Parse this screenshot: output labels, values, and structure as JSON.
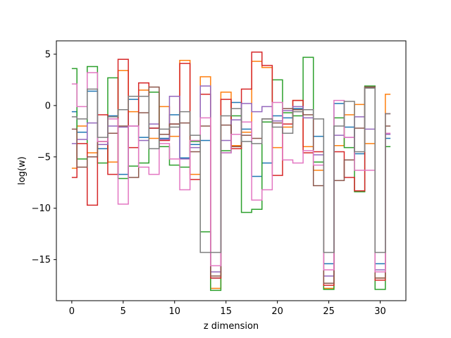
{
  "chart_data": {
    "type": "line",
    "drawstyle": "steps-mid",
    "title": "",
    "xlabel": "z dimension",
    "ylabel": "log(w)",
    "xlim": [
      -1.5,
      32.5
    ],
    "ylim": [
      -19.0,
      6.3
    ],
    "xticks": [
      0,
      5,
      10,
      15,
      20,
      25,
      30
    ],
    "yticks": [
      5,
      0,
      -5,
      -10,
      -15
    ],
    "ytick_labels": [
      "5",
      "0",
      "−5",
      "−10",
      "−15"
    ],
    "grid": false,
    "legend": "none",
    "x": [
      0,
      1,
      2,
      3,
      4,
      5,
      6,
      7,
      8,
      9,
      10,
      11,
      12,
      13,
      14,
      15,
      16,
      17,
      18,
      19,
      20,
      21,
      22,
      23,
      24,
      25,
      26,
      27,
      28,
      29,
      30,
      31
    ],
    "series": [
      {
        "color": "#1f77b4",
        "values": [
          -0.6,
          -2.6,
          1.4,
          -4.2,
          -1.0,
          -6.7,
          0.6,
          -3.1,
          -2.2,
          -3.2,
          -0.9,
          -5.1,
          -3.8,
          -3.4,
          -16.8,
          -4.6,
          0.3,
          -2.3,
          -6.9,
          -5.6,
          -1.0,
          -1.2,
          -0.3,
          -0.4,
          -3.0,
          -15.4,
          0.2,
          -2.1,
          -4.7,
          1.8,
          -15.4,
          -3.2
        ]
      },
      {
        "color": "#ff7f0e",
        "values": [
          -6.1,
          -2.0,
          -4.6,
          -3.5,
          -5.5,
          3.4,
          -0.6,
          1.5,
          -3.2,
          -0.1,
          -3.0,
          4.4,
          -6.7,
          2.8,
          -17.8,
          1.3,
          -3.9,
          -2.6,
          4.3,
          3.7,
          -4.1,
          -2.1,
          0.5,
          -4.0,
          -6.3,
          -17.8,
          -3.9,
          -0.9,
          0.1,
          -3.7,
          -16.8,
          1.1
        ]
      },
      {
        "color": "#2ca02c",
        "values": [
          3.6,
          -5.2,
          3.8,
          -5.6,
          2.7,
          -7.1,
          -5.9,
          -5.6,
          1.3,
          -4.0,
          -5.8,
          -6.0,
          -3.5,
          -12.3,
          -18.0,
          -4.4,
          -1.0,
          -10.4,
          -10.1,
          -1.6,
          2.5,
          -0.7,
          -1.0,
          4.7,
          -5.5,
          -17.9,
          -1.2,
          -4.1,
          -8.4,
          1.9,
          -17.9,
          -4.0
        ]
      },
      {
        "color": "#d62728",
        "values": [
          -7.0,
          -3.7,
          -9.7,
          -0.9,
          -6.7,
          4.5,
          -4.1,
          2.2,
          -2.2,
          -3.4,
          -1.8,
          4.1,
          -7.2,
          1.1,
          -16.8,
          0.6,
          -4.2,
          1.6,
          5.2,
          3.9,
          -6.8,
          -1.8,
          0.5,
          -4.6,
          -4.5,
          -17.5,
          -4.5,
          -7.0,
          -8.3,
          1.8,
          -17.0,
          -0.8
        ]
      },
      {
        "color": "#9467bd",
        "values": [
          -3.7,
          -3.3,
          -1.7,
          -3.8,
          -2.0,
          -2.1,
          -2.0,
          -3.4,
          -1.8,
          -3.3,
          0.9,
          -5.2,
          -4.1,
          1.9,
          -16.2,
          -3.4,
          -1.4,
          0.2,
          -0.6,
          -0.1,
          -1.5,
          -0.5,
          -0.1,
          -1.2,
          -4.8,
          -16.6,
          -2.9,
          -3.1,
          -1.1,
          -2.3,
          -16.0,
          -2.8
        ]
      },
      {
        "color": "#8c564b",
        "values": [
          -2.3,
          -6.0,
          -5.0,
          -3.5,
          -2.7,
          -2.0,
          -7.0,
          -0.7,
          1.8,
          -2.8,
          -1.8,
          -1.7,
          -4.5,
          -2.0,
          -16.6,
          -1.9,
          -4.0,
          -2.9,
          -3.2,
          -1.3,
          -1.7,
          -0.3,
          -0.4,
          -0.9,
          -7.8,
          -17.3,
          -7.3,
          -5.3,
          -2.2,
          1.8,
          -16.8,
          -2.0
        ]
      },
      {
        "color": "#e377c2",
        "values": [
          2.1,
          -0.1,
          3.2,
          -3.5,
          -1.3,
          -9.6,
          -2.0,
          -6.0,
          -6.7,
          -3.7,
          -5.2,
          -8.2,
          -3.4,
          -1.2,
          -15.6,
          -4.6,
          -2.8,
          -1.6,
          -9.2,
          -8.2,
          0.3,
          -5.3,
          -5.6,
          -4.4,
          -5.8,
          -16.0,
          0.5,
          -3.1,
          -6.3,
          -6.3,
          -16.2,
          -2.7
        ]
      },
      {
        "color": "#7f7f7f",
        "values": [
          -1.1,
          -1.3,
          1.6,
          -3.1,
          -1.1,
          -0.4,
          0.9,
          0.9,
          -4.2,
          -2.3,
          -2.1,
          -0.6,
          -2.9,
          -14.3,
          -14.3,
          -1.0,
          -0.3,
          -3.5,
          -3.7,
          -1.3,
          -2.1,
          -2.7,
          -0.6,
          -0.4,
          -1.3,
          -14.3,
          -2.0,
          0.4,
          -4.5,
          1.7,
          -14.3,
          -0.8
        ]
      }
    ]
  }
}
